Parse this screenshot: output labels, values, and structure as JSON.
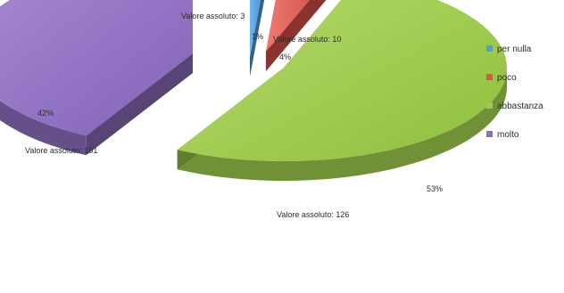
{
  "chart_data": {
    "type": "pie",
    "style": "exploded 3D pie",
    "slices": [
      {
        "key": "per_nulla",
        "name": "per nulla",
        "percent_label": "1%",
        "absolute_label": "Valore assoluto: 3",
        "value": 3,
        "color": "#4b9fe0"
      },
      {
        "key": "poco",
        "name": "poco",
        "percent_label": "4%",
        "absolute_label": "Valore assoluto: 10",
        "value": 10,
        "color": "#e0534a"
      },
      {
        "key": "abbastanza",
        "name": "abbastanza",
        "percent_label": "53%",
        "absolute_label": "Valore assoluto: 126",
        "value": 126,
        "color": "#9cc94a"
      },
      {
        "key": "molto",
        "name": "molto",
        "percent_label": "42%",
        "absolute_label": "Valore assoluto: 101",
        "value": 101,
        "color": "#8e6fbf"
      }
    ],
    "legend_position": "right",
    "title": ""
  }
}
